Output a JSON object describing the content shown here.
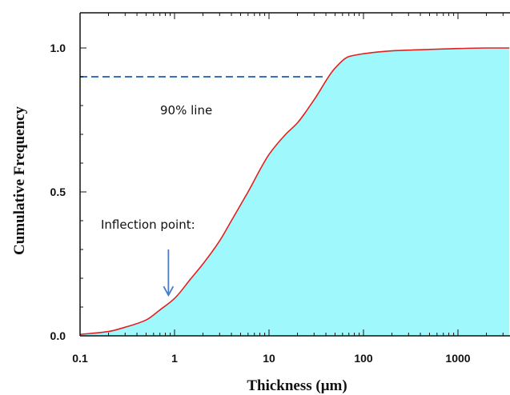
{
  "chart_data": {
    "type": "area",
    "title": "",
    "xlabel": "Thickness (μm)",
    "ylabel": "Cumulative Frequency",
    "x_scale": "log",
    "xlim": [
      0.1,
      3500
    ],
    "ylim": [
      0,
      1.0
    ],
    "x_ticks": [
      0.1,
      1,
      10,
      100,
      1000
    ],
    "x_tick_labels": [
      "0.1",
      "1",
      "10",
      "100",
      "1000"
    ],
    "y_ticks": [
      0.0,
      0.5,
      1.0
    ],
    "y_tick_labels": [
      "0.0",
      "0.5",
      "1.0"
    ],
    "grid": false,
    "legend": "none",
    "series": [
      {
        "x": [
          0.1,
          0.2,
          0.3,
          0.5,
          0.7,
          1,
          1.5,
          2,
          3,
          4,
          6,
          10,
          15,
          20,
          30,
          50,
          70,
          100,
          200,
          500,
          1000,
          2000,
          3500
        ],
        "y": [
          0.005,
          0.015,
          0.03,
          0.055,
          0.09,
          0.13,
          0.2,
          0.25,
          0.33,
          0.4,
          0.5,
          0.63,
          0.7,
          0.74,
          0.82,
          0.93,
          0.97,
          0.98,
          0.99,
          0.995,
          0.998,
          1.0,
          1.0
        ]
      }
    ],
    "reference_line": {
      "y": 0.9,
      "x_start": 0.1,
      "x_end": 40,
      "label": "90% line"
    },
    "annotations": [
      {
        "text": "Inflection point:",
        "x": 0.95,
        "y": 0.13
      }
    ],
    "colors": {
      "fill": "#9ff8fb",
      "curve": "#e32020",
      "reference": "#3a6fbf",
      "arrow": "#4a7cc9",
      "axis": "#111111"
    }
  }
}
